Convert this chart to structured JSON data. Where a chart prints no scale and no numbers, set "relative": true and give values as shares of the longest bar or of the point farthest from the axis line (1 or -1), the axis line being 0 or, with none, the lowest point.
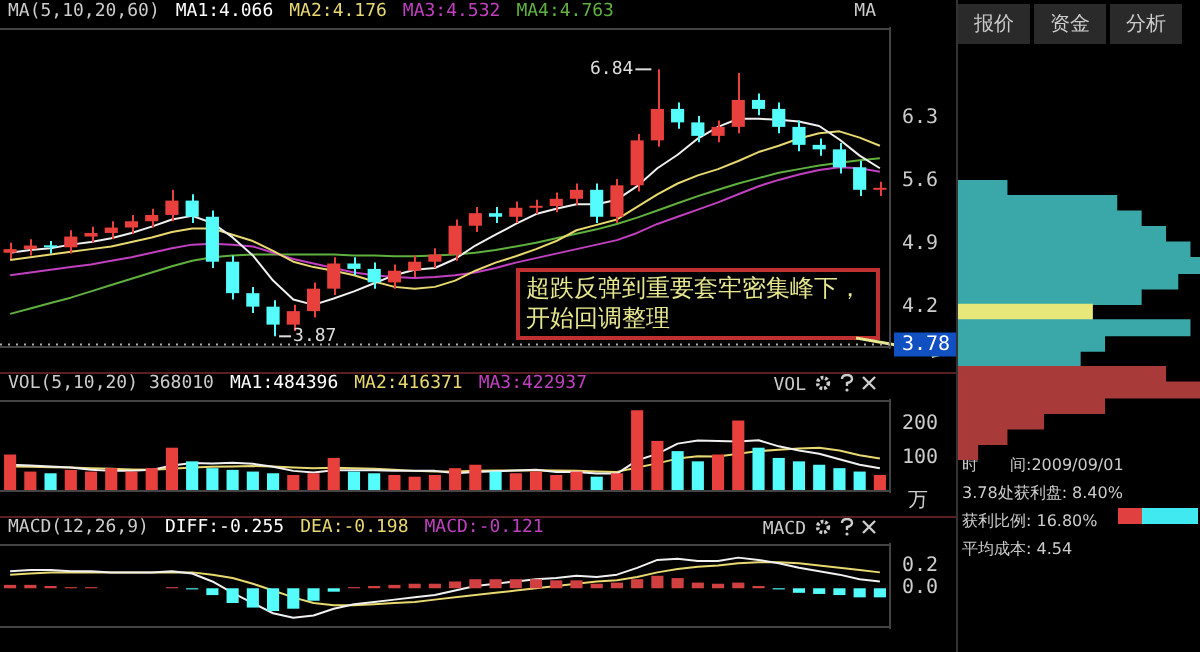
{
  "chart_data": [
    {
      "type": "candlestick",
      "categories": [
        null,
        null,
        null,
        null,
        null,
        null,
        null,
        null,
        null,
        null,
        null,
        null,
        null,
        null,
        null,
        null,
        null,
        null,
        null,
        null,
        null,
        null,
        null,
        null,
        null,
        null,
        null,
        null,
        null,
        null,
        null,
        null,
        null,
        null,
        null,
        null,
        null,
        null,
        null,
        null,
        null,
        null,
        null,
        null
      ],
      "ohlc": [
        [
          4.8,
          4.91,
          4.73,
          4.84
        ],
        [
          4.84,
          4.95,
          4.77,
          4.88
        ],
        [
          4.88,
          4.93,
          4.79,
          4.86
        ],
        [
          4.86,
          5.05,
          4.79,
          4.98
        ],
        [
          4.98,
          5.09,
          4.91,
          5.02
        ],
        [
          5.02,
          5.15,
          4.95,
          5.08
        ],
        [
          5.08,
          5.22,
          5.01,
          5.15
        ],
        [
          5.15,
          5.29,
          5.08,
          5.22
        ],
        [
          5.22,
          5.5,
          5.15,
          5.38
        ],
        [
          5.38,
          5.45,
          5.13,
          5.2
        ],
        [
          5.2,
          5.27,
          4.63,
          4.7
        ],
        [
          4.7,
          4.77,
          4.28,
          4.35
        ],
        [
          4.35,
          4.42,
          4.13,
          4.2
        ],
        [
          4.2,
          4.27,
          3.87,
          4.0
        ],
        [
          4.0,
          4.22,
          3.93,
          4.15
        ],
        [
          4.15,
          4.47,
          4.08,
          4.4
        ],
        [
          4.4,
          4.75,
          4.33,
          4.68
        ],
        [
          4.68,
          4.75,
          4.55,
          4.62
        ],
        [
          4.62,
          4.69,
          4.4,
          4.47
        ],
        [
          4.47,
          4.67,
          4.4,
          4.6
        ],
        [
          4.6,
          4.77,
          4.53,
          4.7
        ],
        [
          4.7,
          4.85,
          4.63,
          4.78
        ],
        [
          4.78,
          5.17,
          4.71,
          5.1
        ],
        [
          5.1,
          5.31,
          5.03,
          5.24
        ],
        [
          5.24,
          5.31,
          5.13,
          5.2
        ],
        [
          5.2,
          5.37,
          5.13,
          5.3
        ],
        [
          5.3,
          5.39,
          5.23,
          5.32
        ],
        [
          5.32,
          5.47,
          5.25,
          5.4
        ],
        [
          5.4,
          5.57,
          5.33,
          5.5
        ],
        [
          5.5,
          5.57,
          5.13,
          5.2
        ],
        [
          5.2,
          5.62,
          5.13,
          5.55
        ],
        [
          5.55,
          6.12,
          5.48,
          6.05
        ],
        [
          6.05,
          6.84,
          5.98,
          6.4
        ],
        [
          6.4,
          6.47,
          6.18,
          6.25
        ],
        [
          6.25,
          6.32,
          6.03,
          6.1
        ],
        [
          6.1,
          6.27,
          6.03,
          6.2
        ],
        [
          6.2,
          6.8,
          6.13,
          6.5
        ],
        [
          6.5,
          6.57,
          6.33,
          6.4
        ],
        [
          6.4,
          6.47,
          6.13,
          6.2
        ],
        [
          6.2,
          6.27,
          5.93,
          6.0
        ],
        [
          6.0,
          6.07,
          5.88,
          5.95
        ],
        [
          5.95,
          6.02,
          5.68,
          5.75
        ],
        [
          5.75,
          5.82,
          5.43,
          5.5
        ],
        [
          5.5,
          5.59,
          5.43,
          5.52
        ]
      ],
      "colors": [
        "#e8403c",
        "#e8403c",
        "#54fcfc",
        "#e8403c",
        "#e8403c",
        "#e8403c",
        "#e8403c",
        "#e8403c",
        "#e8403c",
        "#54fcfc",
        "#54fcfc",
        "#54fcfc",
        "#54fcfc",
        "#54fcfc",
        "#e8403c",
        "#e8403c",
        "#e8403c",
        "#54fcfc",
        "#54fcfc",
        "#e8403c",
        "#e8403c",
        "#e8403c",
        "#e8403c",
        "#e8403c",
        "#54fcfc",
        "#e8403c",
        "#e8403c",
        "#e8403c",
        "#e8403c",
        "#54fcfc",
        "#e8403c",
        "#e8403c",
        "#e8403c",
        "#54fcfc",
        "#54fcfc",
        "#e8403c",
        "#e8403c",
        "#54fcfc",
        "#54fcfc",
        "#54fcfc",
        "#54fcfc",
        "#54fcfc",
        "#54fcfc",
        "#e8403c"
      ],
      "series": [
        {
          "type": "line",
          "color": "#f0f0f0",
          "values": [
            4.8,
            4.83,
            4.85,
            4.89,
            4.92,
            4.96,
            5.02,
            5.09,
            5.17,
            5.21,
            5.13,
            4.97,
            4.77,
            4.49,
            4.28,
            4.22,
            4.29,
            4.37,
            4.46,
            4.55,
            4.61,
            4.63,
            4.73,
            4.88,
            5.0,
            5.12,
            5.23,
            5.29,
            5.34,
            5.34,
            5.39,
            5.54,
            5.74,
            5.89,
            6.07,
            6.2,
            6.29,
            6.29,
            6.28,
            6.26,
            6.21,
            6.06,
            5.88,
            5.74
          ]
        },
        {
          "type": "line",
          "color": "#e8d870",
          "values": [
            4.72,
            4.75,
            4.78,
            4.81,
            4.84,
            4.87,
            4.92,
            4.97,
            5.03,
            5.07,
            5.07,
            5.0,
            4.93,
            4.82,
            4.7,
            4.64,
            4.6,
            4.55,
            4.48,
            4.42,
            4.4,
            4.42,
            4.49,
            4.6,
            4.69,
            4.76,
            4.84,
            4.93,
            5.05,
            5.11,
            5.17,
            5.31,
            5.45,
            5.57,
            5.66,
            5.73,
            5.82,
            5.92,
            5.99,
            6.07,
            6.13,
            6.15,
            6.08,
            5.99
          ]
        },
        {
          "type": "line",
          "color": "#c040c0",
          "values": [
            4.55,
            4.58,
            4.61,
            4.64,
            4.67,
            4.71,
            4.75,
            4.8,
            4.85,
            4.89,
            4.9,
            4.89,
            4.87,
            4.8,
            4.73,
            4.68,
            4.63,
            4.58,
            4.55,
            4.53,
            4.52,
            4.53,
            4.55,
            4.58,
            4.63,
            4.69,
            4.74,
            4.79,
            4.84,
            4.89,
            4.94,
            5.02,
            5.12,
            5.2,
            5.28,
            5.36,
            5.45,
            5.54,
            5.61,
            5.67,
            5.72,
            5.75,
            5.74,
            5.7
          ]
        },
        {
          "type": "line",
          "color": "#60b040",
          "values": [
            4.12,
            4.18,
            4.24,
            4.3,
            4.37,
            4.44,
            4.51,
            4.58,
            4.65,
            4.71,
            4.75,
            4.77,
            4.78,
            4.78,
            4.78,
            4.78,
            4.78,
            4.77,
            4.77,
            4.76,
            4.76,
            4.77,
            4.78,
            4.8,
            4.83,
            4.87,
            4.91,
            4.96,
            5.01,
            5.06,
            5.12,
            5.19,
            5.27,
            5.35,
            5.43,
            5.5,
            5.57,
            5.63,
            5.69,
            5.73,
            5.77,
            5.8,
            5.83,
            5.85
          ]
        }
      ],
      "ylim": [
        3.74,
        7.3
      ],
      "yticks": [
        4.2,
        4.9,
        5.6,
        6.3
      ],
      "grid": false,
      "tick_labels": "y",
      "ref_lines": [
        {
          "axis": "y",
          "value": 3.78,
          "label": "3.78",
          "line_style": "dotted"
        }
      ],
      "annotations": [
        "MA(5,10,20,60)",
        "MA1:4.066",
        "MA2:4.176",
        "MA3:4.532",
        "MA4:4.763",
        "MA",
        "6.84",
        {
          "text": "3.87",
          "y": 3.87
        },
        "超跌反弹到重要套牢密集峰下，开始回调整理"
      ]
    },
    {
      "type": "bar",
      "categories": [
        null,
        null,
        null,
        null,
        null,
        null,
        null,
        null,
        null,
        null,
        null,
        null,
        null,
        null,
        null,
        null,
        null,
        null,
        null,
        null,
        null,
        null,
        null,
        null,
        null,
        null,
        null,
        null,
        null,
        null,
        null,
        null,
        null,
        null,
        null,
        null,
        null,
        null,
        null,
        null,
        null,
        null,
        null,
        null
      ],
      "series": [
        {
          "type": "bar",
          "colors": [
            "#e8403c",
            "#e8403c",
            "#54fcfc",
            "#e8403c",
            "#e8403c",
            "#e8403c",
            "#e8403c",
            "#e8403c",
            "#e8403c",
            "#54fcfc",
            "#54fcfc",
            "#54fcfc",
            "#54fcfc",
            "#54fcfc",
            "#e8403c",
            "#e8403c",
            "#e8403c",
            "#54fcfc",
            "#54fcfc",
            "#e8403c",
            "#e8403c",
            "#e8403c",
            "#e8403c",
            "#e8403c",
            "#54fcfc",
            "#e8403c",
            "#e8403c",
            "#e8403c",
            "#e8403c",
            "#54fcfc",
            "#e8403c",
            "#e8403c",
            "#e8403c",
            "#54fcfc",
            "#54fcfc",
            "#e8403c",
            "#e8403c",
            "#54fcfc",
            "#54fcfc",
            "#54fcfc",
            "#54fcfc",
            "#54fcfc",
            "#54fcfc",
            "#e8403c"
          ],
          "values": [
            110,
            60,
            55,
            65,
            60,
            70,
            60,
            70,
            130,
            90,
            70,
            65,
            60,
            55,
            50,
            55,
            100,
            60,
            55,
            50,
            45,
            50,
            70,
            80,
            60,
            55,
            60,
            50,
            60,
            45,
            55,
            240,
            150,
            120,
            90,
            110,
            210,
            130,
            100,
            90,
            80,
            70,
            60,
            50
          ]
        },
        {
          "type": "line",
          "color": "#f0f0f0",
          "values": [
            80,
            78,
            75,
            72,
            65,
            62,
            62,
            65,
            78,
            85,
            84,
            86,
            83,
            74,
            62,
            57,
            64,
            64,
            64,
            62,
            62,
            62,
            55,
            59,
            61,
            63,
            65,
            59,
            59,
            54,
            54,
            93,
            112,
            142,
            151,
            150,
            148,
            152,
            134,
            122,
            112,
            96,
            80,
            70
          ]
        },
        {
          "type": "line",
          "color": "#e8d870",
          "values": [
            75,
            74,
            73,
            72,
            70,
            68,
            66,
            65,
            68,
            72,
            74,
            75,
            76,
            75,
            72,
            70,
            71,
            70,
            68,
            65,
            62,
            60,
            60,
            62,
            63,
            63,
            64,
            63,
            62,
            60,
            59,
            72,
            84,
            98,
            105,
            104,
            112,
            120,
            124,
            128,
            130,
            122,
            108,
            98
          ]
        }
      ],
      "ylim": [
        0,
        270
      ],
      "yticks": [
        100,
        200
      ],
      "ylabel": "万",
      "grid": false,
      "tick_labels": "y",
      "annotations": [
        "VOL(5,10,20) 368010",
        "MA1:484396",
        "MA2:416371",
        "MA3:422937",
        "VOL"
      ]
    },
    {
      "type": "bar",
      "categories": [
        null,
        null,
        null,
        null,
        null,
        null,
        null,
        null,
        null,
        null,
        null,
        null,
        null,
        null,
        null,
        null,
        null,
        null,
        null,
        null,
        null,
        null,
        null,
        null,
        null,
        null,
        null,
        null,
        null,
        null,
        null,
        null,
        null,
        null,
        null,
        null,
        null,
        null,
        null,
        null,
        null,
        null,
        null,
        null
      ],
      "series": [
        {
          "type": "bar",
          "colors": [
            "#d04040",
            "#d04040",
            "#d04040",
            "#d04040",
            "#d04040",
            "#d04040",
            "#d04040",
            "#d04040",
            "#d04040",
            "#54fcfc",
            "#54fcfc",
            "#54fcfc",
            "#54fcfc",
            "#54fcfc",
            "#54fcfc",
            "#54fcfc",
            "#54fcfc",
            "#d04040",
            "#d04040",
            "#d04040",
            "#d04040",
            "#d04040",
            "#d04040",
            "#d04040",
            "#d04040",
            "#d04040",
            "#d04040",
            "#d04040",
            "#d04040",
            "#d04040",
            "#d04040",
            "#d04040",
            "#d04040",
            "#d04040",
            "#d04040",
            "#d04040",
            "#d04040",
            "#d04040",
            "#54fcfc",
            "#54fcfc",
            "#54fcfc",
            "#54fcfc",
            "#54fcfc",
            "#54fcfc"
          ],
          "values": [
            0.03,
            0.03,
            0.02,
            0.01,
            0.01,
            0,
            0,
            0,
            0.01,
            -0.01,
            -0.06,
            -0.13,
            -0.17,
            -0.2,
            -0.18,
            -0.11,
            -0.03,
            0.01,
            0.02,
            0.03,
            0.04,
            0.04,
            0.06,
            0.08,
            0.08,
            0.08,
            0.08,
            0.07,
            0.07,
            0.04,
            0.05,
            0.08,
            0.11,
            0.09,
            0.05,
            0.04,
            0.05,
            0.02,
            -0.01,
            -0.04,
            -0.05,
            -0.06,
            -0.08,
            -0.08
          ]
        },
        {
          "type": "line",
          "color": "#f0f0f0",
          "values": [
            0.15,
            0.16,
            0.16,
            0.15,
            0.15,
            0.14,
            0.14,
            0.14,
            0.15,
            0.13,
            0.06,
            -0.04,
            -0.13,
            -0.22,
            -0.26,
            -0.24,
            -0.18,
            -0.14,
            -0.12,
            -0.1,
            -0.08,
            -0.06,
            -0.02,
            0.02,
            0.04,
            0.06,
            0.08,
            0.09,
            0.11,
            0.1,
            0.12,
            0.18,
            0.25,
            0.26,
            0.24,
            0.24,
            0.27,
            0.25,
            0.22,
            0.18,
            0.15,
            0.12,
            0.08,
            0.06
          ]
        },
        {
          "type": "line",
          "color": "#e8d870",
          "values": [
            0.12,
            0.13,
            0.14,
            0.14,
            0.14,
            0.14,
            0.14,
            0.14,
            0.14,
            0.14,
            0.12,
            0.09,
            0.04,
            -0.02,
            -0.08,
            -0.13,
            -0.15,
            -0.15,
            -0.14,
            -0.13,
            -0.12,
            -0.1,
            -0.08,
            -0.06,
            -0.04,
            -0.02,
            0.0,
            0.02,
            0.04,
            0.06,
            0.07,
            0.1,
            0.14,
            0.17,
            0.19,
            0.2,
            0.22,
            0.23,
            0.23,
            0.22,
            0.2,
            0.18,
            0.16,
            0.14
          ]
        }
      ],
      "ylim": [
        -0.35,
        0.39
      ],
      "yticks": [
        0.2,
        {
          "value": 0,
          "label": "0.0"
        }
      ],
      "grid": false,
      "tick_labels": "y",
      "annotations": [
        "MACD(12,26,9)",
        "DIFF:-0.255",
        "DEA:-0.198",
        "MACD:-0.121",
        "MACD"
      ]
    },
    {
      "type": "bar",
      "orientation": "horizontal",
      "relative": true,
      "categories": [
        null,
        null,
        null,
        null,
        null,
        null,
        null,
        null,
        null,
        null,
        null,
        null,
        null,
        null,
        null,
        null,
        null,
        null
      ],
      "values": [
        0.2,
        0.65,
        0.75,
        0.85,
        0.95,
        1.0,
        0.9,
        0.75,
        0.55,
        0.95,
        0.6,
        0.5,
        0.85,
        1.0,
        0.6,
        0.35,
        0.2,
        0.08
      ],
      "colors": [
        "#3aa8a8",
        "#3aa8a8",
        "#3aa8a8",
        "#3aa8a8",
        "#3aa8a8",
        "#3aa8a8",
        "#3aa8a8",
        "#3aa8a8",
        "#e8e87a",
        "#3aa8a8",
        "#3aa8a8",
        "#3aa8a8",
        "#a83a3a",
        "#a83a3a",
        "#a83a3a",
        "#a83a3a",
        "#a83a3a",
        "#a83a3a"
      ],
      "tick_labels": false,
      "annotations": [
        "报价",
        "资金",
        "分析",
        "时　　间:2009/09/01",
        "3.78处获利盘: 8.40%",
        "获利比例: 16.80%",
        "平均成本: 4.54"
      ]
    }
  ]
}
